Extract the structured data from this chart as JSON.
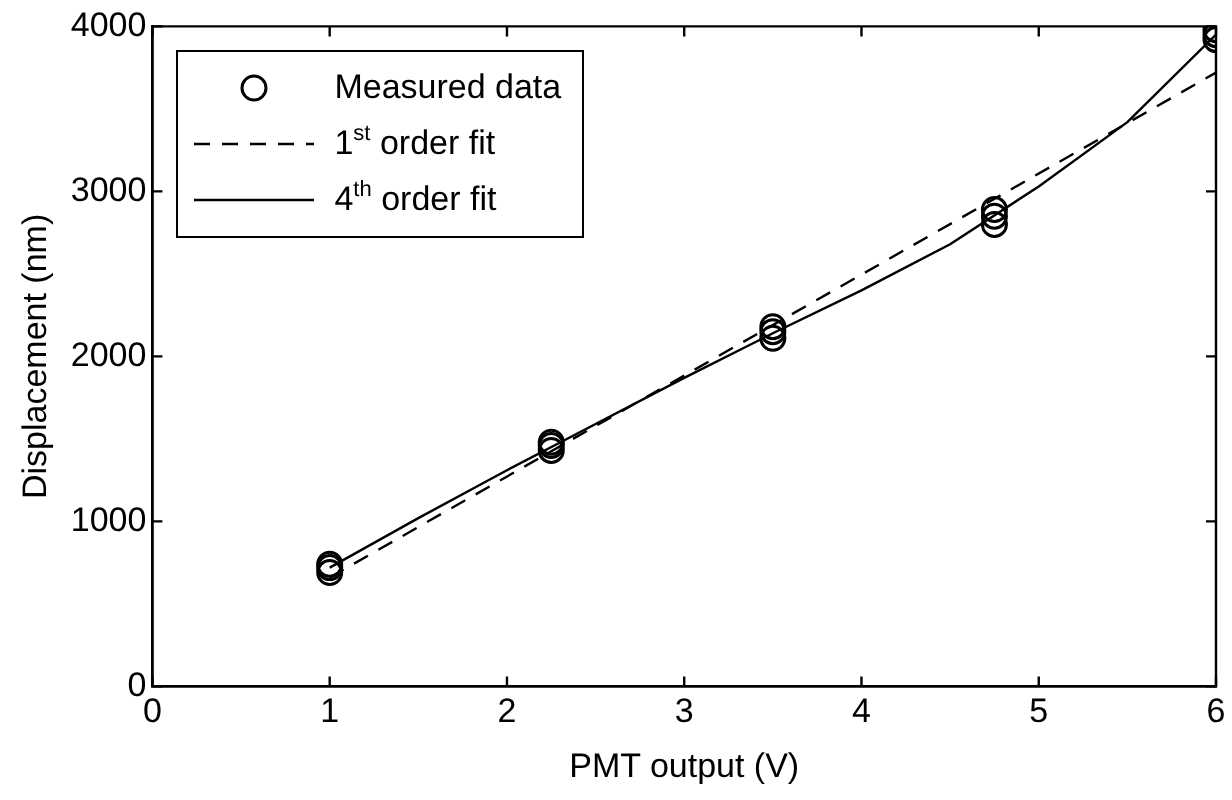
{
  "chart_data": {
    "type": "scatter",
    "xlabel": "PMT output (V)",
    "ylabel": "Displacement (nm)",
    "xlim": [
      0,
      6
    ],
    "xticks": [
      0,
      1,
      2,
      3,
      4,
      5,
      6
    ],
    "ylim": [
      0,
      4000
    ],
    "yticks": [
      0,
      1000,
      2000,
      3000,
      4000
    ],
    "grid": false,
    "legend": "top left",
    "series": [
      {
        "name": "Measured data",
        "marker": "circle",
        "color": "#000000",
        "x": [
          1,
          1,
          1,
          2.25,
          2.25,
          2.25,
          3.5,
          3.5,
          3.5,
          4.75,
          4.75,
          4.75,
          6,
          6,
          6
        ],
        "values": [
          690,
          720,
          740,
          1430,
          1460,
          1480,
          2110,
          2150,
          2180,
          2800,
          2850,
          2890,
          3920,
          3950,
          3980
        ]
      },
      {
        "name": "1$^{st}$ order fit",
        "type": "line",
        "marker": "none",
        "line_style": "dashed",
        "color": "#000000",
        "x": [
          1,
          6
        ],
        "values": [
          660,
          3720
        ]
      },
      {
        "name": "4$^{th}$ order fit",
        "type": "line",
        "marker": "none",
        "line_style": "solid",
        "color": "#000000",
        "x": [
          1,
          1.5,
          2,
          2.5,
          3,
          3.5,
          4,
          4.5,
          5,
          5.5,
          6
        ],
        "values": [
          720,
          1020,
          1310,
          1590,
          1870,
          2140,
          2400,
          2680,
          3030,
          3420,
          3950
        ]
      }
    ]
  }
}
